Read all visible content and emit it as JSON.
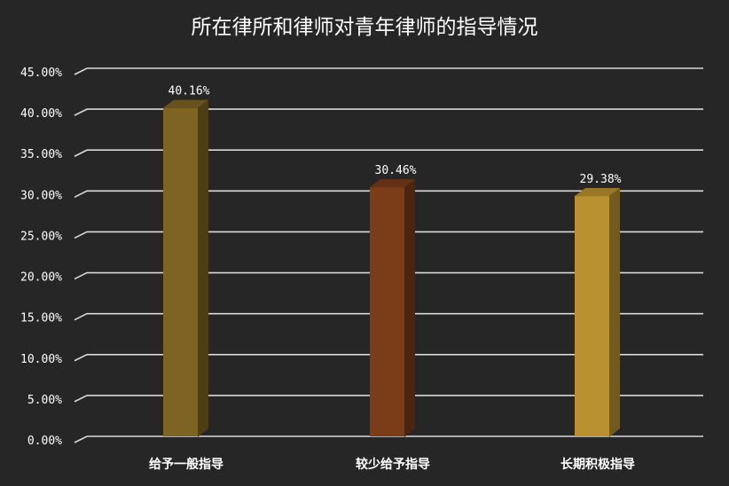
{
  "chart_data": {
    "type": "bar",
    "title": "所在律所和律师对青年律师的指导情况",
    "categories": [
      "给予一般指导",
      "较少给予指导",
      "长期积极指导"
    ],
    "values": [
      40.16,
      30.46,
      29.38
    ],
    "value_labels": [
      "40.16%",
      "30.46%",
      "29.38%"
    ],
    "colors": [
      "#7d6424",
      "#7b3c18",
      "#b99130"
    ],
    "ylim": [
      0,
      45
    ],
    "ytick_labels": [
      "0.00%",
      "5.00%",
      "10.00%",
      "15.00%",
      "20.00%",
      "25.00%",
      "30.00%",
      "35.00%",
      "40.00%",
      "45.00%"
    ],
    "grid": true,
    "legend": "none"
  }
}
